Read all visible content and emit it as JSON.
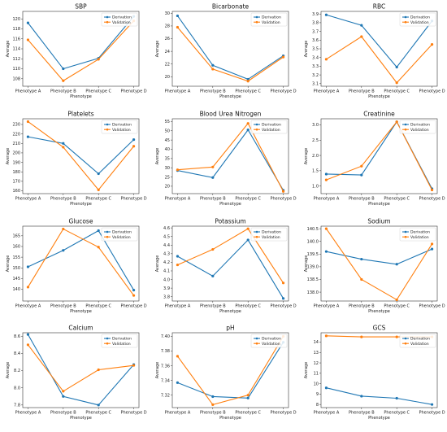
{
  "colors": {
    "derivation": "#1f77b4",
    "validation": "#ff7f0e"
  },
  "chart_data": [
    {
      "type": "line",
      "title": "SBP",
      "xlabel": "Phenotype",
      "ylabel": "Average",
      "categories": [
        "Phenotype A",
        "Phenotype B",
        "Phenotype C",
        "Phenotype D"
      ],
      "ylim": [
        106.5,
        121.5
      ],
      "yticks": [
        108,
        110,
        112,
        114,
        116,
        118,
        120
      ],
      "legend": "top-right",
      "grid": false,
      "series": [
        {
          "name": "Derivation",
          "values": [
            119.2,
            110.0,
            112.1,
            120.5
          ]
        },
        {
          "name": "Validation",
          "values": [
            115.8,
            107.6,
            111.9,
            119.6
          ]
        }
      ]
    },
    {
      "type": "line",
      "title": "Bicarbonate",
      "xlabel": "Phenotype",
      "ylabel": "Average",
      "categories": [
        "Phenotype A",
        "Phenotype B",
        "Phenotype C",
        "Phenotype D"
      ],
      "ylim": [
        18.5,
        30.3
      ],
      "yticks": [
        20,
        22,
        24,
        26,
        28,
        30
      ],
      "legend": "top-right",
      "grid": false,
      "series": [
        {
          "name": "Derivation",
          "values": [
            29.6,
            21.8,
            19.6,
            23.3
          ]
        },
        {
          "name": "Validation",
          "values": [
            27.8,
            21.2,
            19.3,
            23.1
          ]
        }
      ]
    },
    {
      "type": "line",
      "title": "RBC",
      "xlabel": "Phenotype",
      "ylabel": "Average",
      "categories": [
        "Phenotype A",
        "Phenotype B",
        "Phenotype C",
        "Phenotype D"
      ],
      "ylim": [
        3.07,
        3.93
      ],
      "yticks": [
        3.1,
        3.2,
        3.3,
        3.4,
        3.5,
        3.6,
        3.7,
        3.8,
        3.9
      ],
      "legend": "top-right",
      "grid": false,
      "series": [
        {
          "name": "Derivation",
          "values": [
            3.89,
            3.77,
            3.29,
            3.82
          ]
        },
        {
          "name": "Validation",
          "values": [
            3.38,
            3.64,
            3.11,
            3.55
          ]
        }
      ]
    },
    {
      "type": "line",
      "title": "Platelets",
      "xlabel": "Phenotype",
      "ylabel": "Average",
      "categories": [
        "Phenotype A",
        "Phenotype B",
        "Phenotype C",
        "Phenotype D"
      ],
      "ylim": [
        157,
        236
      ],
      "yticks": [
        160,
        170,
        180,
        190,
        200,
        210,
        220,
        230
      ],
      "legend": "top-right",
      "grid": false,
      "series": [
        {
          "name": "Derivation",
          "values": [
            217,
            210,
            178,
            214
          ]
        },
        {
          "name": "Validation",
          "values": [
            233,
            206,
            161,
            207
          ]
        }
      ]
    },
    {
      "type": "line",
      "title": "Blood Urea Nitrogen",
      "xlabel": "Phenotype",
      "ylabel": "Average",
      "categories": [
        "Phenotype A",
        "Phenotype B",
        "Phenotype C",
        "Phenotype D"
      ],
      "ylim": [
        16,
        56.5
      ],
      "yticks": [
        20,
        25,
        30,
        35,
        40,
        45,
        50,
        55
      ],
      "legend": "top-right",
      "grid": false,
      "series": [
        {
          "name": "Derivation",
          "values": [
            28.5,
            24.7,
            50.5,
            17.8
          ]
        },
        {
          "name": "Validation",
          "values": [
            28.9,
            30.4,
            54.0,
            17.2
          ]
        }
      ]
    },
    {
      "type": "line",
      "title": "Creatinine",
      "xlabel": "Phenotype",
      "ylabel": "Average",
      "categories": [
        "Phenotype A",
        "Phenotype B",
        "Phenotype C",
        "Phenotype D"
      ],
      "ylim": [
        0.75,
        3.2
      ],
      "yticks": [
        1.0,
        1.5,
        2.0,
        2.5,
        3.0
      ],
      "legend": "top-right",
      "grid": false,
      "series": [
        {
          "name": "Derivation",
          "values": [
            1.39,
            1.36,
            3.1,
            0.91
          ]
        },
        {
          "name": "Validation",
          "values": [
            1.2,
            1.65,
            3.1,
            0.87
          ]
        }
      ]
    },
    {
      "type": "line",
      "title": "Glucose",
      "xlabel": "Phenotype",
      "ylabel": "Average",
      "categories": [
        "Phenotype A",
        "Phenotype B",
        "Phenotype C",
        "Phenotype D"
      ],
      "ylim": [
        134.5,
        169.5
      ],
      "yticks": [
        140,
        145,
        150,
        155,
        160,
        165
      ],
      "legend": "top-right",
      "grid": false,
      "series": [
        {
          "name": "Derivation",
          "values": [
            150.5,
            158.2,
            167.4,
            139.6
          ]
        },
        {
          "name": "Validation",
          "values": [
            141.0,
            168.2,
            159.7,
            137.1
          ]
        }
      ]
    },
    {
      "type": "line",
      "title": "Potassium",
      "xlabel": "Phenotype",
      "ylabel": "Average",
      "categories": [
        "Phenotype A",
        "Phenotype B",
        "Phenotype C",
        "Phenotype D"
      ],
      "ylim": [
        3.75,
        4.62
      ],
      "yticks": [
        3.8,
        3.9,
        4.0,
        4.1,
        4.2,
        4.3,
        4.4,
        4.5,
        4.6
      ],
      "legend": "top-right",
      "grid": false,
      "series": [
        {
          "name": "Derivation",
          "values": [
            4.27,
            4.04,
            4.46,
            3.78
          ]
        },
        {
          "name": "Validation",
          "values": [
            4.17,
            4.35,
            4.59,
            3.96
          ]
        }
      ]
    },
    {
      "type": "line",
      "title": "Sodium",
      "xlabel": "Phenotype",
      "ylabel": "Average",
      "categories": [
        "Phenotype A",
        "Phenotype B",
        "Phenotype C",
        "Phenotype D"
      ],
      "ylim": [
        137.65,
        140.6
      ],
      "yticks": [
        138.0,
        138.5,
        139.0,
        139.5,
        140.0,
        140.5
      ],
      "legend": "top-right",
      "grid": false,
      "series": [
        {
          "name": "Derivation",
          "values": [
            139.6,
            139.3,
            139.1,
            139.7
          ]
        },
        {
          "name": "Validation",
          "values": [
            140.5,
            138.5,
            137.7,
            139.9
          ]
        }
      ]
    },
    {
      "type": "line",
      "title": "Calcium",
      "xlabel": "Phenotype",
      "ylabel": "Average",
      "categories": [
        "Phenotype A",
        "Phenotype B",
        "Phenotype C",
        "Phenotype D"
      ],
      "ylim": [
        7.77,
        8.64
      ],
      "yticks": [
        7.8,
        8.0,
        8.2,
        8.4,
        8.6
      ],
      "legend": "top-right",
      "grid": false,
      "series": [
        {
          "name": "Derivation",
          "values": [
            8.62,
            7.9,
            7.8,
            8.27
          ]
        },
        {
          "name": "Validation",
          "values": [
            8.5,
            7.96,
            8.21,
            8.26
          ]
        }
      ]
    },
    {
      "type": "line",
      "title": "pH",
      "xlabel": "Phenotype",
      "ylabel": "Average",
      "categories": [
        "Phenotype A",
        "Phenotype B",
        "Phenotype C",
        "Phenotype D"
      ],
      "ylim": [
        7.303,
        7.405
      ],
      "yticks": [
        7.32,
        7.34,
        7.36,
        7.38,
        7.4
      ],
      "legend": "top-right",
      "grid": false,
      "series": [
        {
          "name": "Derivation",
          "values": [
            7.337,
            7.318,
            7.316,
            7.392
          ]
        },
        {
          "name": "Validation",
          "values": [
            7.373,
            7.307,
            7.32,
            7.4
          ]
        }
      ]
    },
    {
      "type": "line",
      "title": "GCS",
      "xlabel": "Phenotype",
      "ylabel": "Average",
      "categories": [
        "Phenotype A",
        "Phenotype B",
        "Phenotype C",
        "Phenotype D"
      ],
      "ylim": [
        7.7,
        14.9
      ],
      "yticks": [
        8,
        9,
        10,
        11,
        12,
        13,
        14
      ],
      "legend": "top-right",
      "grid": false,
      "series": [
        {
          "name": "Derivation",
          "values": [
            9.6,
            8.8,
            8.6,
            8.0
          ]
        },
        {
          "name": "Validation",
          "values": [
            14.6,
            14.5,
            14.5,
            14.5
          ]
        }
      ]
    }
  ]
}
